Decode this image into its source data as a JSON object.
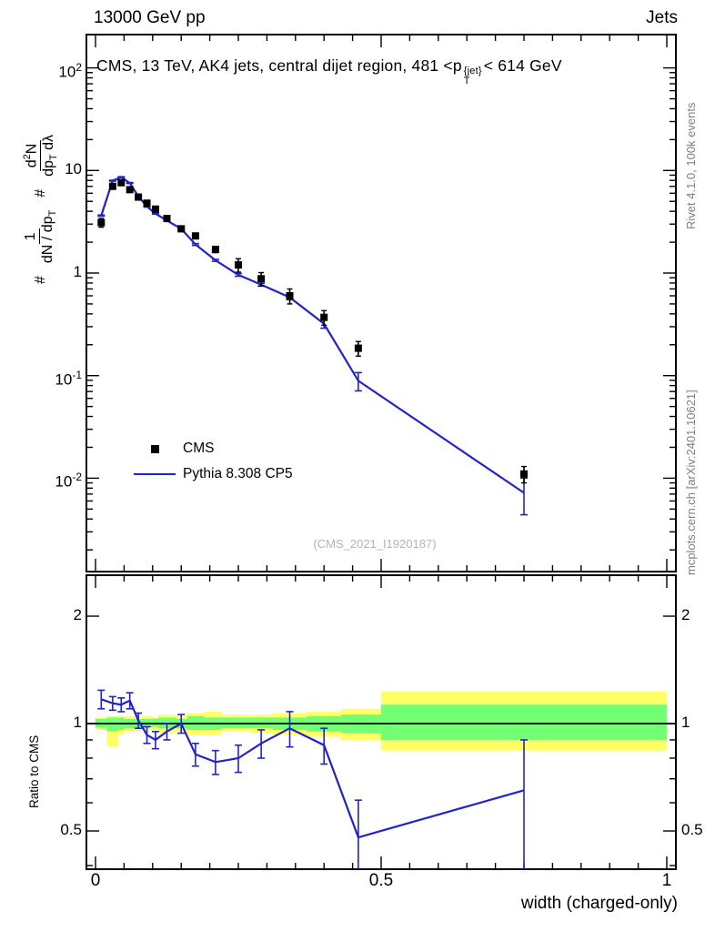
{
  "header": {
    "left": "13000 GeV pp",
    "right": "Jets"
  },
  "title": {
    "pre": "CMS, 13 TeV, AK4 jets, central dijet region, 481 <p",
    "sup": "{jet}",
    "sub": "T",
    "post": "< 614 GeV"
  },
  "watermark": "(CMS_2021_I1920187)",
  "side_labels": {
    "rivet": "Rivet 4.1.0,  100k events",
    "mcplots": "mcplots.cern.ch [arXiv:2401.10621]"
  },
  "ylabel_main": {
    "hash1": "#",
    "num1": "1",
    "den1": "dN / dp",
    "den1_sub": "T",
    "hash2": "#",
    "num2a": "d",
    "num2_sup": "2",
    "num2b": "N",
    "den2a": "dp",
    "den2_sub": "T",
    "den2b": " dλ"
  },
  "ratio_ylabel": "Ratio to CMS",
  "xlabel": "width (charged-only)",
  "legend": {
    "items": [
      {
        "label": "CMS",
        "marker": "square",
        "color": "#000000"
      },
      {
        "label": "Pythia 8.308 CP5",
        "marker": "line",
        "color": "#2222cc"
      }
    ]
  },
  "chart_data": {
    "type": "scatter+line with ratio panel",
    "title": "CMS, 13 TeV, AK4 jets, central dijet region, 481 <p^{jet}_T< 614 GeV",
    "xlabel": "width (charged-only)",
    "x_range": [
      0,
      1
    ],
    "x_major_ticks": [
      0,
      0.5,
      1
    ],
    "x_tick_labels": [
      "0",
      "0.5",
      "1"
    ],
    "x_minor_step": 0.05,
    "colors": {
      "cms_marker": "#000000",
      "pythia_line": "#2222cc",
      "band_yellow": "#ffff66",
      "band_green": "#73ff73"
    },
    "main_panel": {
      "yscale": "log",
      "y_range": [
        0.0012,
        215
      ],
      "y_major_ticks": [
        100,
        10,
        1,
        0.1,
        0.01
      ],
      "y_tick_labels": [
        "10^2",
        "10",
        "1",
        "10^-1",
        "10^-2"
      ],
      "x": [
        0.01,
        0.03,
        0.045,
        0.06,
        0.075,
        0.09,
        0.105,
        0.125,
        0.15,
        0.175,
        0.21,
        0.25,
        0.29,
        0.34,
        0.4,
        0.46,
        0.75
      ],
      "cms": {
        "y": [
          3.1,
          7.0,
          7.6,
          6.5,
          5.5,
          4.8,
          4.2,
          3.4,
          2.7,
          2.3,
          1.7,
          1.2,
          0.88,
          0.6,
          0.37,
          0.185,
          0.011
        ],
        "yerr": [
          0.3,
          0.35,
          0.35,
          0.3,
          0.25,
          0.2,
          0.18,
          0.15,
          0.13,
          0.12,
          0.12,
          0.18,
          0.13,
          0.1,
          0.06,
          0.03,
          0.002
        ]
      },
      "pythia": {
        "y": [
          3.63,
          7.95,
          8.6,
          7.55,
          5.6,
          4.45,
          3.8,
          3.25,
          2.7,
          1.9,
          1.33,
          0.96,
          0.77,
          0.58,
          0.32,
          0.089,
          0.0072
        ],
        "yerr": [
          0.05,
          0.08,
          0.09,
          0.08,
          0.07,
          0.06,
          0.05,
          0.05,
          0.05,
          0.04,
          0.03,
          0.03,
          0.025,
          0.03,
          0.03,
          0.018,
          0.0028
        ]
      }
    },
    "ratio_panel": {
      "yscale": "log",
      "y_range": [
        0.39,
        2.6
      ],
      "y_major_ticks": [
        2,
        1,
        0.5
      ],
      "y_tick_labels": [
        "2",
        "1",
        "0.5"
      ],
      "y_minor_ticks": [
        0.4,
        0.6,
        0.7,
        0.8,
        0.9
      ],
      "x": [
        0.01,
        0.03,
        0.045,
        0.06,
        0.075,
        0.09,
        0.105,
        0.125,
        0.15,
        0.175,
        0.21,
        0.25,
        0.29,
        0.34,
        0.4,
        0.46,
        0.75
      ],
      "ratio": [
        1.17,
        1.14,
        1.13,
        1.16,
        1.02,
        0.93,
        0.9,
        0.95,
        1.0,
        0.82,
        0.78,
        0.8,
        0.88,
        0.97,
        0.87,
        0.48,
        0.65
      ],
      "err_up": [
        0.07,
        0.05,
        0.05,
        0.06,
        0.05,
        0.05,
        0.05,
        0.05,
        0.06,
        0.06,
        0.06,
        0.07,
        0.08,
        0.11,
        0.1,
        0.13,
        0.25
      ],
      "err_dn": [
        0.07,
        0.05,
        0.05,
        0.06,
        0.05,
        0.05,
        0.05,
        0.05,
        0.06,
        0.06,
        0.06,
        0.07,
        0.08,
        0.11,
        0.1,
        0.22,
        0.42
      ],
      "bands": [
        {
          "x1": 0.0,
          "x2": 0.02,
          "yellow": [
            0.96,
            1.04
          ],
          "green": [
            0.975,
            1.03
          ]
        },
        {
          "x1": 0.02,
          "x2": 0.04,
          "yellow": [
            0.86,
            1.05
          ],
          "green": [
            0.95,
            1.04
          ]
        },
        {
          "x1": 0.04,
          "x2": 0.05,
          "yellow": [
            0.93,
            1.05
          ],
          "green": [
            0.96,
            1.04
          ]
        },
        {
          "x1": 0.05,
          "x2": 0.07,
          "yellow": [
            0.95,
            1.05
          ],
          "green": [
            0.97,
            1.03
          ]
        },
        {
          "x1": 0.07,
          "x2": 0.08,
          "yellow": [
            0.95,
            1.04
          ],
          "green": [
            0.97,
            1.03
          ]
        },
        {
          "x1": 0.08,
          "x2": 0.1,
          "yellow": [
            0.96,
            1.05
          ],
          "green": [
            0.975,
            1.03
          ]
        },
        {
          "x1": 0.1,
          "x2": 0.11,
          "yellow": [
            0.96,
            1.04
          ],
          "green": [
            0.98,
            1.03
          ]
        },
        {
          "x1": 0.11,
          "x2": 0.14,
          "yellow": [
            0.94,
            1.06
          ],
          "green": [
            0.97,
            1.04
          ]
        },
        {
          "x1": 0.14,
          "x2": 0.16,
          "yellow": [
            0.95,
            1.05
          ],
          "green": [
            0.97,
            1.03
          ]
        },
        {
          "x1": 0.16,
          "x2": 0.19,
          "yellow": [
            0.93,
            1.07
          ],
          "green": [
            0.96,
            1.05
          ]
        },
        {
          "x1": 0.19,
          "x2": 0.22,
          "yellow": [
            0.93,
            1.08
          ],
          "green": [
            0.96,
            1.04
          ]
        },
        {
          "x1": 0.22,
          "x2": 0.27,
          "yellow": [
            0.95,
            1.06
          ],
          "green": [
            0.97,
            1.04
          ]
        },
        {
          "x1": 0.27,
          "x2": 0.31,
          "yellow": [
            0.94,
            1.06
          ],
          "green": [
            0.97,
            1.04
          ]
        },
        {
          "x1": 0.31,
          "x2": 0.37,
          "yellow": [
            0.93,
            1.07
          ],
          "green": [
            0.96,
            1.04
          ]
        },
        {
          "x1": 0.37,
          "x2": 0.43,
          "yellow": [
            0.92,
            1.08
          ],
          "green": [
            0.95,
            1.05
          ]
        },
        {
          "x1": 0.43,
          "x2": 0.5,
          "yellow": [
            0.9,
            1.1
          ],
          "green": [
            0.94,
            1.06
          ]
        },
        {
          "x1": 0.5,
          "x2": 1.0,
          "yellow": [
            0.84,
            1.23
          ],
          "green": [
            0.9,
            1.13
          ]
        }
      ]
    }
  }
}
